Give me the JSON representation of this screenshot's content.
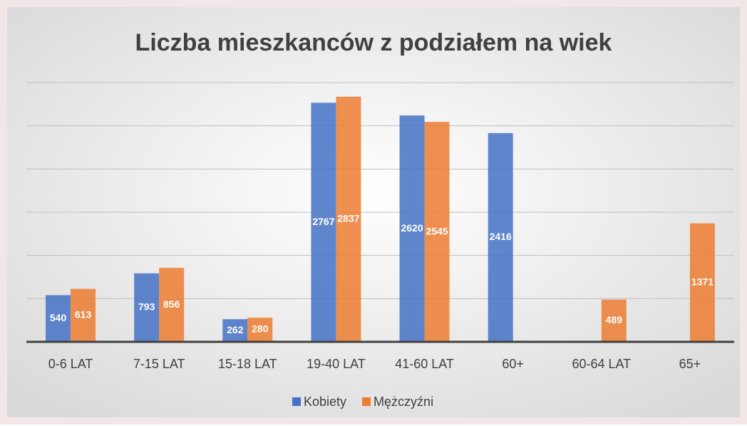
{
  "chart_data": {
    "type": "bar",
    "title": "Liczba mieszkanców z podziałem na wiek",
    "categories": [
      "0-6 LAT",
      "7-15 LAT",
      "15-18 LAT",
      "19-40 LAT",
      "41-60 LAT",
      "60+",
      "60-64 LAT",
      "65+"
    ],
    "series": [
      {
        "name": "Kobiety",
        "color": "#4472c4",
        "values": [
          540,
          793,
          262,
          2767,
          2620,
          2416,
          null,
          null
        ]
      },
      {
        "name": "Mężczyźni",
        "color": "#ed7d31",
        "values": [
          613,
          856,
          280,
          2837,
          2545,
          null,
          489,
          1371
        ]
      }
    ],
    "ylim": [
      0,
      3000
    ],
    "yticks": [
      0,
      500,
      1000,
      1500,
      2000,
      2500,
      3000
    ],
    "grid": true,
    "legend": "bottom"
  }
}
